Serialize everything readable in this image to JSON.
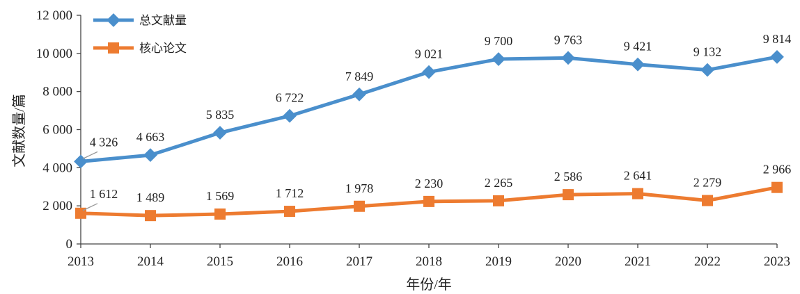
{
  "chart_data": {
    "type": "line",
    "title": "",
    "xlabel": "年份/年",
    "ylabel": "文献数量/篇",
    "ylim": [
      0,
      12000
    ],
    "yticks": [
      0,
      2000,
      4000,
      6000,
      8000,
      10000,
      12000
    ],
    "ytick_labels": [
      "0",
      "2 000",
      "4 000",
      "6 000",
      "8 000",
      "10 000",
      "12 000"
    ],
    "grid": false,
    "legend_position": "top-left",
    "categories": [
      "2013",
      "2014",
      "2015",
      "2016",
      "2017",
      "2018",
      "2019",
      "2020",
      "2021",
      "2022",
      "2023"
    ],
    "series": [
      {
        "name": "总文献量",
        "color": "#4A8FCC",
        "marker": "diamond",
        "values": [
          4326,
          4663,
          5835,
          6722,
          7849,
          9021,
          9700,
          9763,
          9421,
          9132,
          9814
        ],
        "labels": [
          "4 326",
          "4 663",
          "5 835",
          "6 722",
          "7 849",
          "9 021",
          "9 700",
          "9 763",
          "9 421",
          "9 132",
          "9 814"
        ]
      },
      {
        "name": "核心论文",
        "color": "#ED7B30",
        "marker": "square",
        "values": [
          1612,
          1489,
          1569,
          1712,
          1978,
          2230,
          2265,
          2586,
          2641,
          2279,
          2966
        ],
        "labels": [
          "1 612",
          "1 489",
          "1 569",
          "1 712",
          "1 978",
          "2 230",
          "2 265",
          "2 586",
          "2 641",
          "2 279",
          "2 966"
        ]
      }
    ]
  }
}
